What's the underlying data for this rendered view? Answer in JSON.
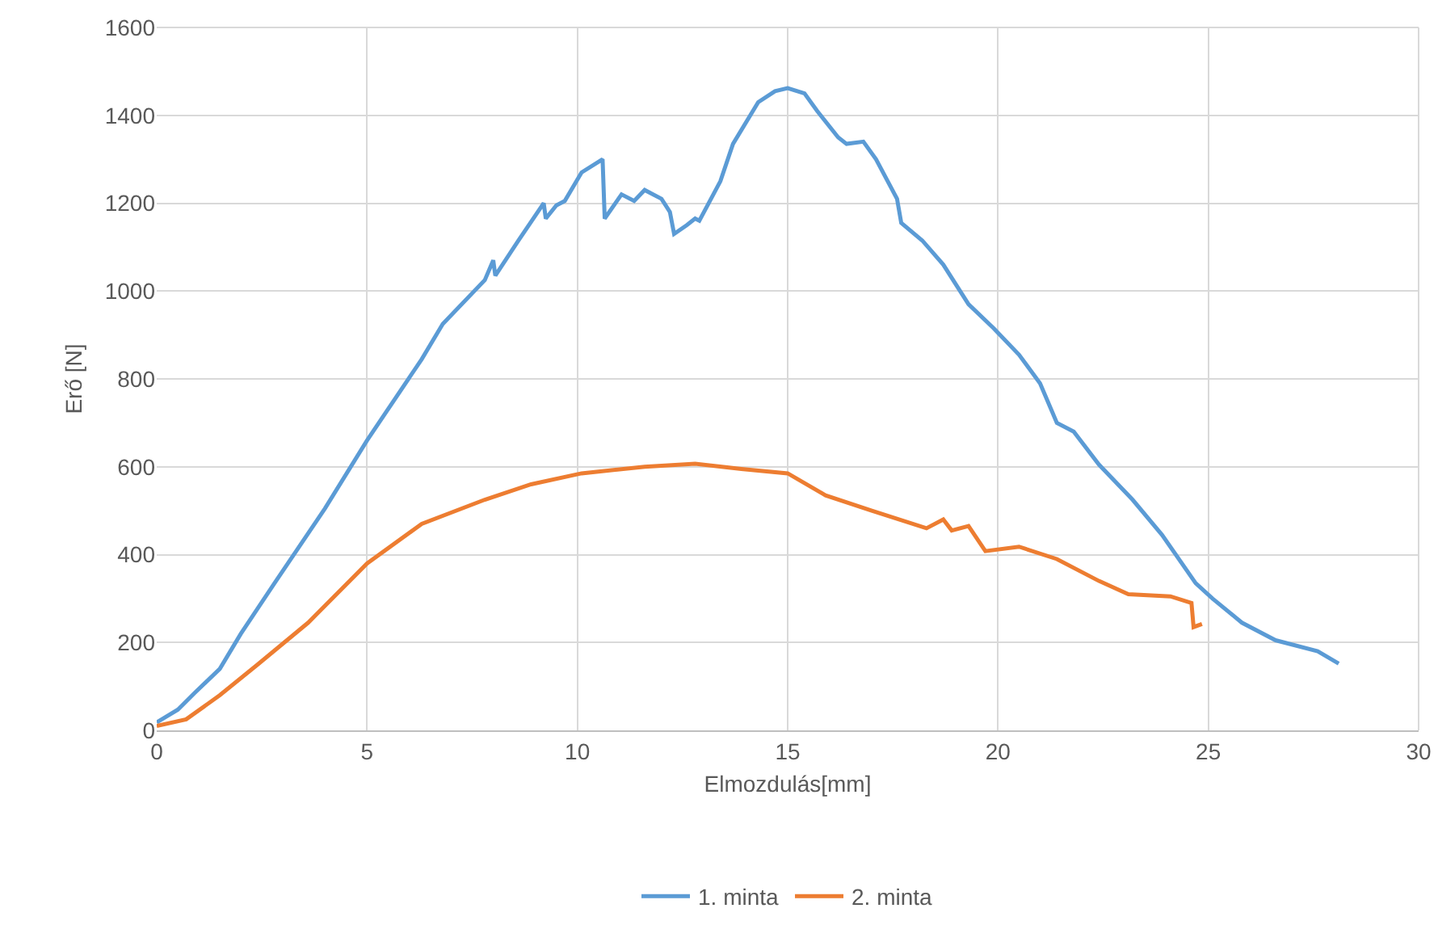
{
  "chart_data": {
    "type": "line",
    "xlabel": "Elmozdulás[mm]",
    "ylabel": "Erő [N]",
    "xlim": [
      0,
      30
    ],
    "xticks": [
      0,
      5,
      10,
      15,
      20,
      25,
      30
    ],
    "ylim": [
      0,
      1600
    ],
    "yticks": [
      0,
      200,
      400,
      600,
      800,
      1000,
      1200,
      1400,
      1600
    ],
    "grid": true,
    "legend": "bottom",
    "marker": "none",
    "line_style": "solid",
    "series": [
      {
        "name": "1. minta",
        "color": "#5b9bd5",
        "x": [
          0,
          0.5,
          0.9,
          1.5,
          2,
          2.8,
          4,
          5,
          6.3,
          6.8,
          7.8,
          8.0,
          8.05,
          8.6,
          9.2,
          9.25,
          9.5,
          9.7,
          10.1,
          10.6,
          10.65,
          11.05,
          11.35,
          11.6,
          12.0,
          12.2,
          12.3,
          12.6,
          12.8,
          12.9,
          13.4,
          13.7,
          14.3,
          14.7,
          15.0,
          15.4,
          15.7,
          16.2,
          16.4,
          16.8,
          17.1,
          17.6,
          17.7,
          18.2,
          18.7,
          19.3,
          19.9,
          20.5,
          21.0,
          21.4,
          21.8,
          22.4,
          23.2,
          23.9,
          24.7,
          25.1,
          25.8,
          26.6,
          27.6,
          28.1
        ],
        "values": [
          18,
          47,
          85,
          140,
          220,
          335,
          505,
          660,
          845,
          925,
          1025,
          1070,
          1035,
          1115,
          1200,
          1165,
          1195,
          1205,
          1270,
          1300,
          1165,
          1220,
          1205,
          1230,
          1210,
          1180,
          1130,
          1150,
          1165,
          1160,
          1250,
          1335,
          1430,
          1455,
          1462,
          1450,
          1410,
          1350,
          1335,
          1340,
          1300,
          1210,
          1155,
          1115,
          1060,
          970,
          915,
          855,
          790,
          700,
          680,
          605,
          525,
          445,
          335,
          300,
          245,
          205,
          180,
          152
        ]
      },
      {
        "name": "2. minta",
        "color": "#ed7d31",
        "x": [
          0,
          0.7,
          1.5,
          2.4,
          3.6,
          5,
          6.3,
          7.8,
          8.9,
          10.1,
          11.6,
          12.8,
          13.9,
          15,
          15.9,
          17,
          18.3,
          18.7,
          18.9,
          19.3,
          19.7,
          20.5,
          21.4,
          22.4,
          23.1,
          24.1,
          24.6,
          24.65,
          24.85
        ],
        "values": [
          10,
          25,
          80,
          150,
          245,
          380,
          470,
          525,
          560,
          585,
          600,
          607,
          595,
          585,
          535,
          500,
          460,
          480,
          455,
          465,
          408,
          418,
          390,
          340,
          310,
          305,
          290,
          235,
          242
        ]
      }
    ]
  }
}
